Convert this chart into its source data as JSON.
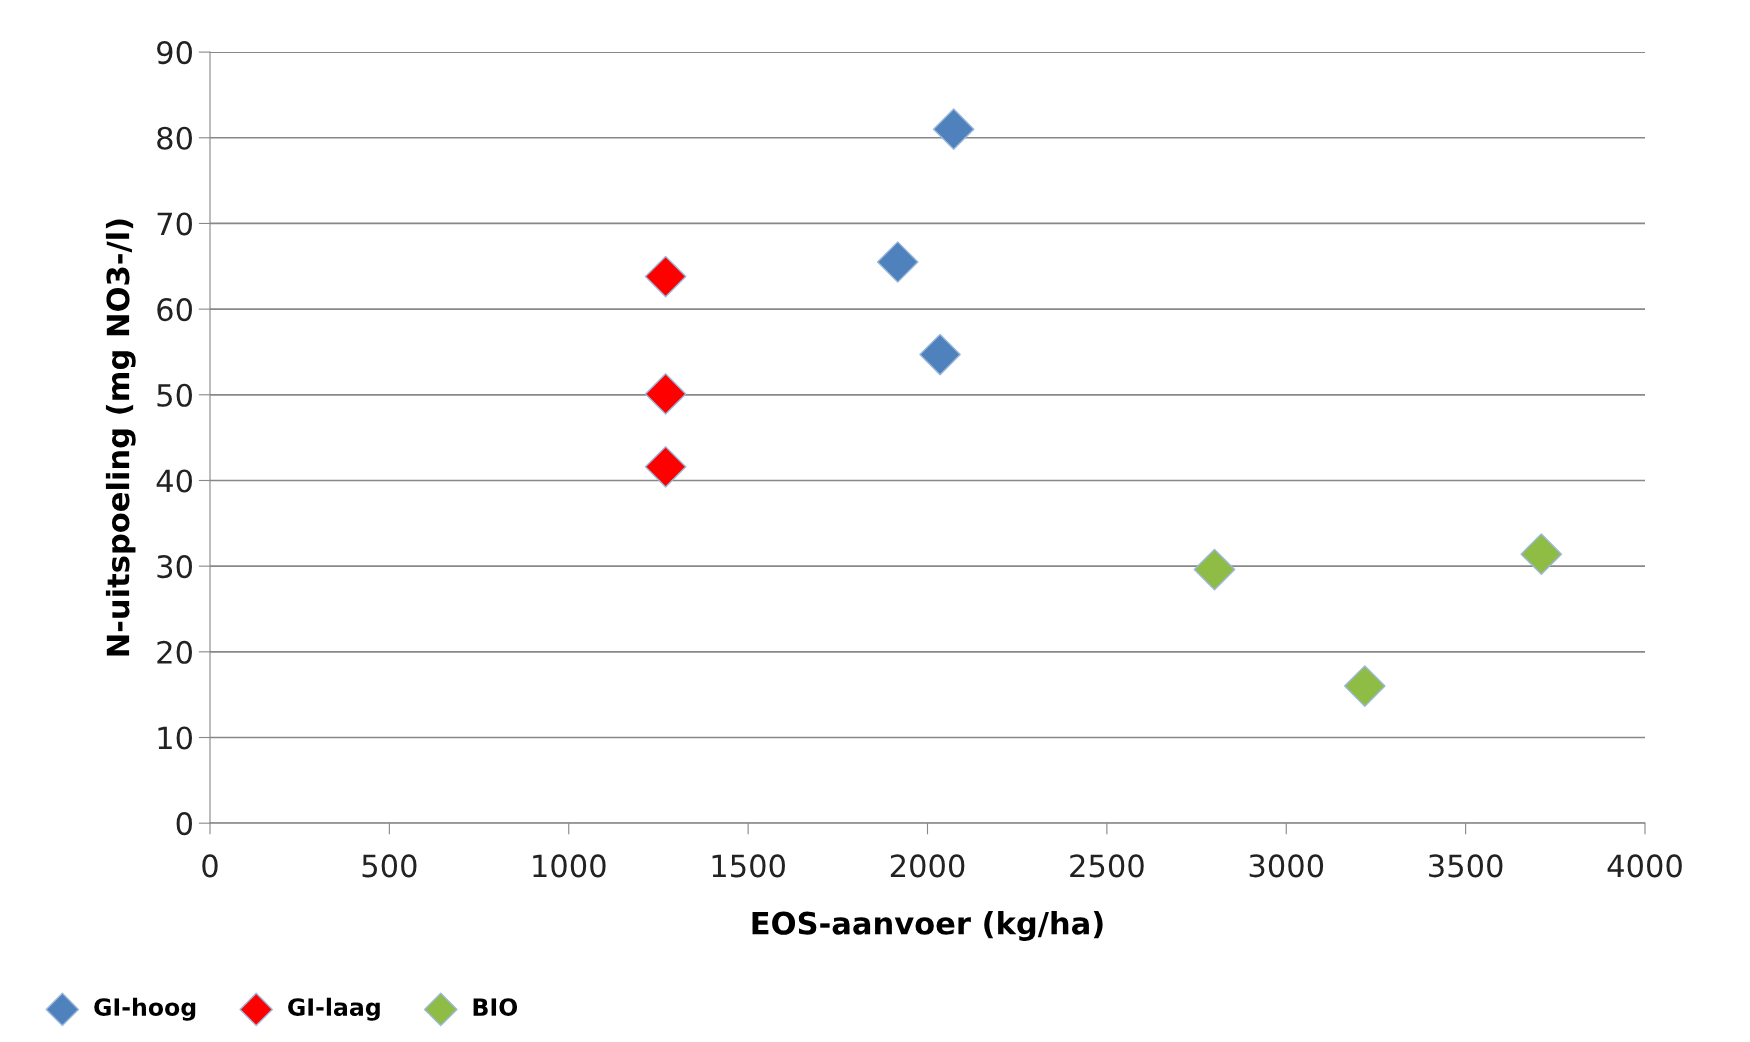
{
  "chart_data": {
    "type": "scatter",
    "xlabel": "EOS-aanvoer (kg/ha)",
    "ylabel": "N-uitspoeling (mg NO3-/l)",
    "series": [
      {
        "name": "GI-hoog",
        "color": "#4f81bd",
        "x": [
          2073,
          1917,
          2035
        ],
        "values": [
          81,
          65.5,
          54.7
        ]
      },
      {
        "name": "GI-laag",
        "color": "#ff0000",
        "x": [
          1270,
          1270,
          1270
        ],
        "values": [
          63.8,
          50.1,
          41.6
        ]
      },
      {
        "name": "BIO",
        "color": "#8fbc45",
        "x": [
          2800,
          3219,
          3711
        ],
        "values": [
          29.6,
          16.0,
          31.4
        ]
      }
    ],
    "xlim": [
      0,
      4000
    ],
    "xticks": [
      0,
      500,
      1000,
      1500,
      2000,
      2500,
      3000,
      3500,
      4000
    ],
    "ylim": [
      0,
      90
    ],
    "yticks": [
      0,
      10,
      20,
      30,
      40,
      50,
      60,
      70,
      80,
      90
    ],
    "grid": "y",
    "legend": "bottom",
    "marker": "diamond"
  }
}
